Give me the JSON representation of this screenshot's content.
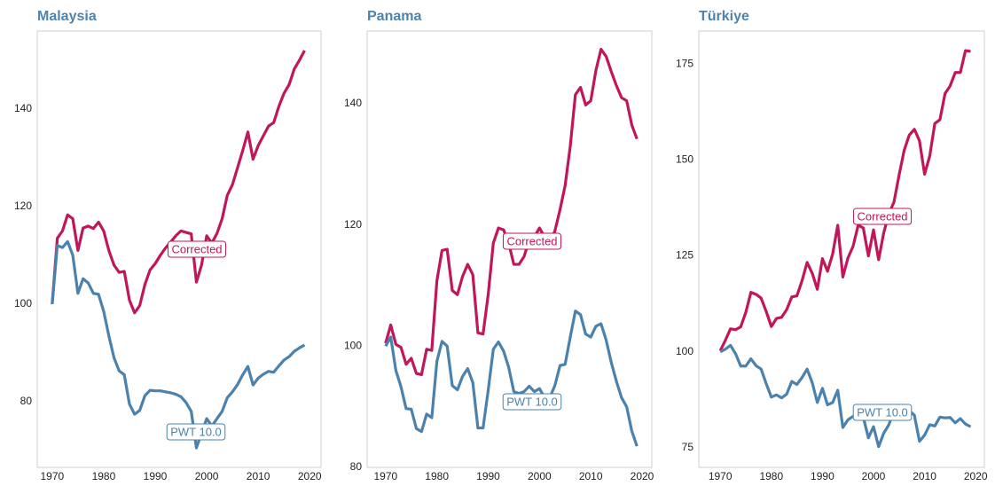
{
  "chart_data": [
    {
      "type": "line",
      "title": "Malaysia",
      "x": [
        1970,
        1971,
        1972,
        1973,
        1974,
        1975,
        1976,
        1977,
        1978,
        1979,
        1980,
        1981,
        1982,
        1983,
        1984,
        1985,
        1986,
        1987,
        1988,
        1989,
        1990,
        1991,
        1992,
        1993,
        1994,
        1995,
        1996,
        1997,
        1998,
        1999,
        2000,
        2001,
        2002,
        2003,
        2004,
        2005,
        2006,
        2007,
        2008,
        2009,
        2010,
        2011,
        2012,
        2013,
        2014,
        2015,
        2016,
        2017,
        2018,
        2019
      ],
      "xlim": [
        1967.1,
        2022.2
      ],
      "xticks": [
        1970,
        1980,
        1990,
        2000,
        2010,
        2020
      ],
      "ylim": [
        66.5,
        156
      ],
      "yticks": [
        80,
        100,
        120,
        140
      ],
      "series": [
        {
          "name": "Corrected",
          "color": "#c0175a",
          "values": [
            100,
            113.5,
            115,
            118.3,
            117.5,
            111,
            115.6,
            116,
            115.5,
            116.8,
            115,
            111,
            108,
            106.5,
            106.7,
            100.8,
            98.2,
            99.7,
            104,
            107,
            108.3,
            110,
            111.5,
            112.7,
            114,
            115,
            114.7,
            114.4,
            104.5,
            108,
            114,
            112.5,
            114.5,
            117.5,
            122.3,
            124.5,
            128,
            131.5,
            135.3,
            129.7,
            132.5,
            134.5,
            136.5,
            137.2,
            140.5,
            143.2,
            145,
            148.2,
            150,
            152
          ]
        },
        {
          "name": "PWT 10.0",
          "color": "#4a82ad",
          "values": [
            100,
            112,
            111.6,
            112.8,
            110,
            102.2,
            105.2,
            104.3,
            102.2,
            102,
            98.5,
            93.5,
            89,
            86.3,
            85.5,
            79.5,
            77.4,
            78.2,
            81.2,
            82.3,
            82.2,
            82.2,
            82,
            81.8,
            81.5,
            81,
            79.8,
            78,
            70.5,
            73.5,
            76.5,
            75,
            76.5,
            78,
            80.8,
            82,
            83.5,
            85.5,
            87.2,
            83.4,
            84.8,
            85.6,
            86.2,
            86,
            87.3,
            88.5,
            89.2,
            90.3,
            91,
            91.6
          ]
        }
      ]
    },
    {
      "type": "line",
      "title": "Panama",
      "x": [
        1970,
        1971,
        1972,
        1973,
        1974,
        1975,
        1976,
        1977,
        1978,
        1979,
        1980,
        1981,
        1982,
        1983,
        1984,
        1985,
        1986,
        1987,
        1988,
        1989,
        1990,
        1991,
        1992,
        1993,
        1994,
        1995,
        1996,
        1997,
        1998,
        1999,
        2000,
        2001,
        2002,
        2003,
        2004,
        2005,
        2006,
        2007,
        2008,
        2009,
        2010,
        2011,
        2012,
        2013,
        2014,
        2015,
        2016,
        2017,
        2018,
        2019
      ],
      "xlim": [
        1966.4,
        2021.9
      ],
      "xticks": [
        1970,
        1980,
        1990,
        2000,
        2010,
        2020
      ],
      "ylim": [
        80,
        152
      ],
      "yticks": [
        80,
        100,
        120,
        140
      ],
      "series": [
        {
          "name": "Corrected",
          "color": "#c0175a",
          "values": [
            100.5,
            103.5,
            100.3,
            99.8,
            97,
            98,
            95.5,
            95.3,
            99.5,
            99.3,
            110.8,
            115.8,
            116,
            109.2,
            108.5,
            111.5,
            113.5,
            111.8,
            102.2,
            102,
            108.5,
            117,
            119.5,
            119.2,
            117,
            113.5,
            113.5,
            114.8,
            117.5,
            118,
            119.5,
            118,
            117,
            119,
            122.5,
            126.5,
            133,
            141.5,
            142.7,
            139.8,
            140.5,
            145.5,
            149,
            147.8,
            145.3,
            143,
            141,
            140.5,
            136.5,
            134.2
          ]
        },
        {
          "name": "PWT 10.0",
          "color": "#4a82ad",
          "values": [
            100,
            101.5,
            96,
            93.3,
            89.7,
            89.6,
            86.4,
            85.9,
            88.8,
            88.2,
            97.5,
            100.8,
            100,
            93.5,
            92.8,
            95,
            96.3,
            94,
            86.5,
            86.5,
            92.7,
            99.5,
            100.7,
            99.2,
            96.5,
            92.5,
            92.2,
            92.5,
            93.4,
            92.5,
            93,
            91.5,
            91.5,
            93.5,
            96.8,
            97,
            101.5,
            105.8,
            105.2,
            102,
            101.5,
            103.3,
            103.7,
            101,
            97.3,
            94.2,
            91.5,
            90,
            86,
            83.5
          ]
        }
      ]
    },
    {
      "type": "line",
      "title": "Türkiye",
      "x": [
        1970,
        1971,
        1972,
        1973,
        1974,
        1975,
        1976,
        1977,
        1978,
        1979,
        1980,
        1981,
        1982,
        1983,
        1984,
        1985,
        1986,
        1987,
        1988,
        1989,
        1990,
        1991,
        1992,
        1993,
        1994,
        1995,
        1996,
        1997,
        1998,
        1999,
        2000,
        2001,
        2002,
        2003,
        2004,
        2005,
        2006,
        2007,
        2008,
        2009,
        2010,
        2011,
        2012,
        2013,
        2014,
        2015,
        2016,
        2017,
        2018,
        2019
      ],
      "xlim": [
        1965.8,
        2021.7
      ],
      "xticks": [
        1970,
        1980,
        1990,
        2000,
        2010,
        2020
      ],
      "ylim": [
        69.9,
        183.6
      ],
      "yticks": [
        75,
        100,
        125,
        150,
        175
      ],
      "series": [
        {
          "name": "Corrected",
          "color": "#c0175a",
          "values": [
            100.3,
            103,
            106,
            105.8,
            106.5,
            110.3,
            115.5,
            115,
            114,
            110.5,
            106.6,
            108.7,
            109,
            111,
            114.3,
            114.6,
            118.5,
            123.3,
            120.5,
            116.3,
            124.3,
            121,
            125.5,
            133,
            119.5,
            124.5,
            127.5,
            133,
            132.3,
            125,
            131.8,
            124,
            131,
            136,
            139,
            146,
            152.5,
            156.5,
            158,
            155,
            146.3,
            151,
            159.5,
            160.5,
            167.3,
            169.3,
            172.8,
            172.8,
            178.5,
            178.3
          ]
        },
        {
          "name": "PWT 10.0",
          "color": "#4a82ad",
          "values": [
            100,
            100.7,
            101.7,
            99.5,
            96.3,
            96.3,
            98.2,
            96.4,
            95.5,
            91.7,
            88.2,
            88.8,
            88,
            89,
            92.3,
            91.5,
            93.3,
            95.5,
            92,
            86.8,
            90.5,
            86.2,
            86.8,
            90,
            80.3,
            82.3,
            83.2,
            82.8,
            83,
            77.6,
            80.5,
            75.3,
            78.8,
            81,
            84.8,
            85,
            84.5,
            84.7,
            83.5,
            76.7,
            78.3,
            81,
            80.7,
            83,
            82.8,
            82.9,
            81.5,
            82.6,
            81.2,
            80.5
          ]
        }
      ]
    }
  ]
}
